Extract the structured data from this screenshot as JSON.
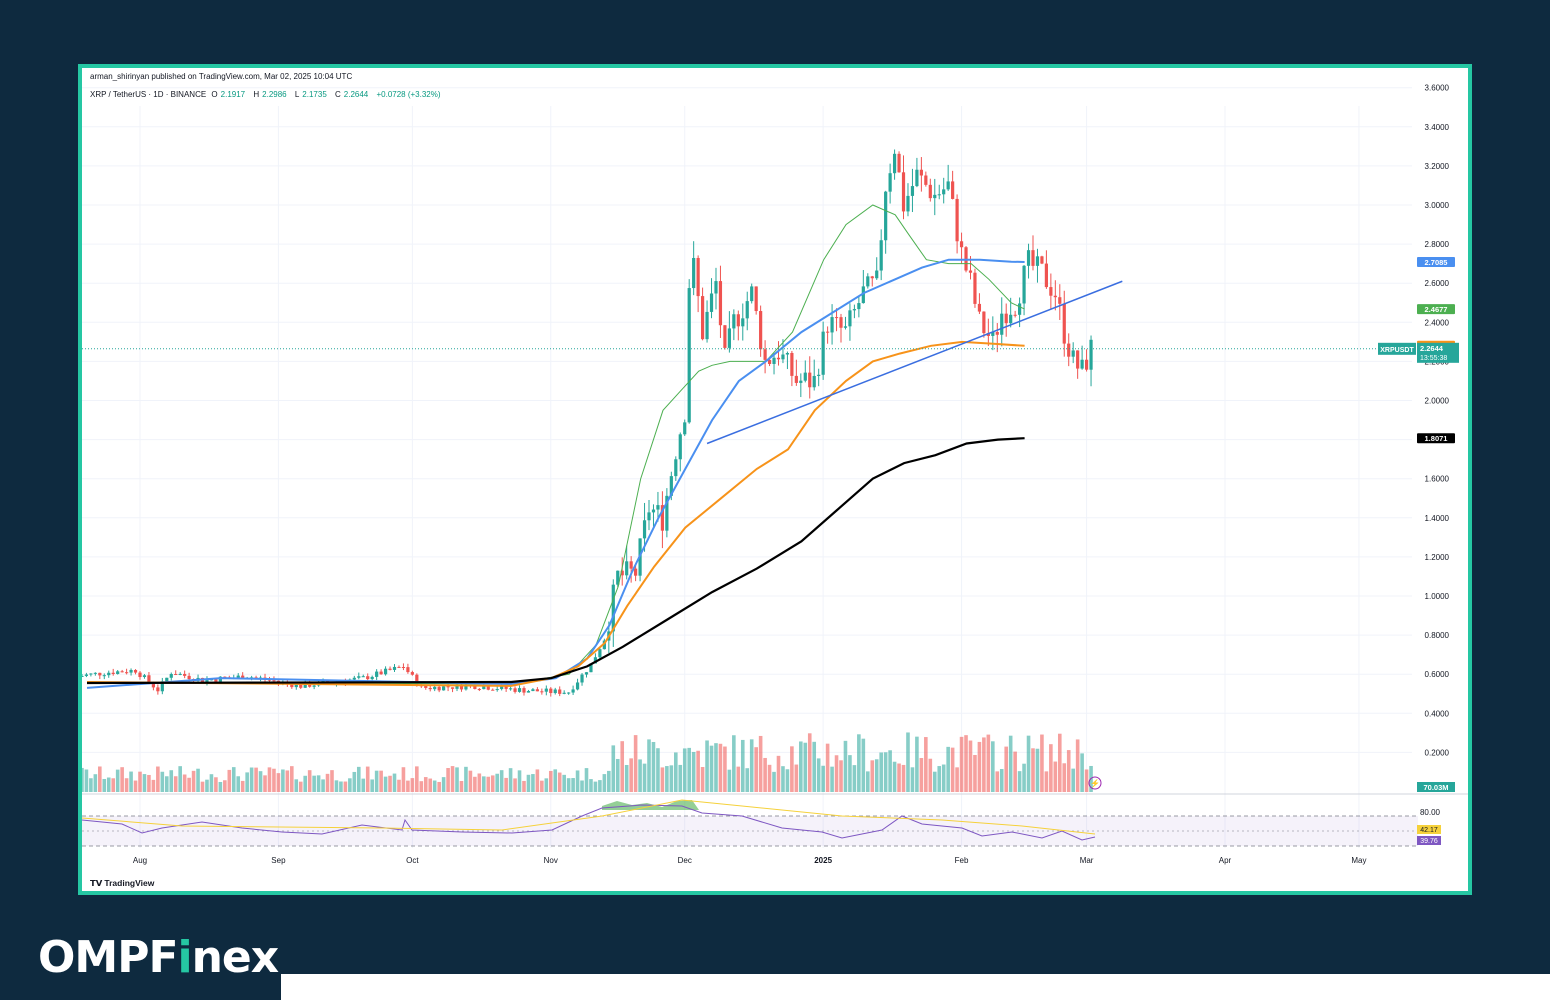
{
  "publisher": "arman_shirinyan published on TradingView.com, Mar 02, 2025 10:04 UTC",
  "symbol_line": "XRP / TetherUS · 1D · BINANCE",
  "ohlc": {
    "o_label": "O",
    "o": "2.1917",
    "h_label": "H",
    "h": "2.2986",
    "l_label": "L",
    "l": "2.1735",
    "c_label": "C",
    "c": "2.2644",
    "change": "+0.0728 (+3.32%)"
  },
  "footer_brand": "TradingView",
  "logo": {
    "pre": "OMPF",
    "i": "i",
    "post": "nex"
  },
  "colors": {
    "up": "#26a69a",
    "down": "#ef5350",
    "ma20": "#4caf50",
    "ma50": "#4a8ff0",
    "ma100": "#f7931a",
    "ma200": "#000000",
    "trend": "#3a6ee0",
    "accent": "#25c7a3",
    "bg": "#0e2a3f"
  },
  "chart_data": {
    "type": "candlestick",
    "title": "",
    "ylim": [
      0.15,
      3.7
    ],
    "price_ticks": [
      "3.6000",
      "3.4000",
      "3.2000",
      "3.0000",
      "2.8000",
      "2.6000",
      "2.4000",
      "2.2000",
      "2.0000",
      "1.8000",
      "1.6000",
      "1.4000",
      "1.2000",
      "1.0000",
      "0.8000",
      "0.6000",
      "0.4000",
      "0.2000"
    ],
    "x_labels": [
      {
        "label": "Aug",
        "date": "2024-08-01"
      },
      {
        "label": "Sep",
        "date": "2024-09-01"
      },
      {
        "label": "Oct",
        "date": "2024-10-01"
      },
      {
        "label": "Nov",
        "date": "2024-11-01"
      },
      {
        "label": "Dec",
        "date": "2024-12-01"
      },
      {
        "label": "2025",
        "date": "2025-01-01"
      },
      {
        "label": "Feb",
        "date": "2025-02-01"
      },
      {
        "label": "Mar",
        "date": "2025-03-01"
      },
      {
        "label": "Apr",
        "date": "2025-04-01"
      },
      {
        "label": "May",
        "date": "2025-05-01"
      }
    ],
    "close_path": [
      {
        "date": "2024-07-18",
        "close": 0.59
      },
      {
        "date": "2024-07-25",
        "close": 0.61
      },
      {
        "date": "2024-07-31",
        "close": 0.62
      },
      {
        "date": "2024-08-05",
        "close": 0.52
      },
      {
        "date": "2024-08-08",
        "close": 0.61
      },
      {
        "date": "2024-08-15",
        "close": 0.57
      },
      {
        "date": "2024-08-25",
        "close": 0.59
      },
      {
        "date": "2024-09-06",
        "close": 0.54
      },
      {
        "date": "2024-09-20",
        "close": 0.58
      },
      {
        "date": "2024-09-29",
        "close": 0.64
      },
      {
        "date": "2024-10-03",
        "close": 0.53
      },
      {
        "date": "2024-10-15",
        "close": 0.54
      },
      {
        "date": "2024-10-25",
        "close": 0.52
      },
      {
        "date": "2024-11-01",
        "close": 0.51
      },
      {
        "date": "2024-11-05",
        "close": 0.51
      },
      {
        "date": "2024-11-10",
        "close": 0.65
      },
      {
        "date": "2024-11-13",
        "close": 0.78
      },
      {
        "date": "2024-11-16",
        "close": 1.1
      },
      {
        "date": "2024-11-20",
        "close": 1.12
      },
      {
        "date": "2024-11-23",
        "close": 1.45
      },
      {
        "date": "2024-11-26",
        "close": 1.4
      },
      {
        "date": "2024-11-29",
        "close": 1.75
      },
      {
        "date": "2024-12-01",
        "close": 1.95
      },
      {
        "date": "2024-12-02",
        "close": 2.6
      },
      {
        "date": "2024-12-03",
        "close": 2.68
      },
      {
        "date": "2024-12-05",
        "close": 2.35
      },
      {
        "date": "2024-12-08",
        "close": 2.6
      },
      {
        "date": "2024-12-10",
        "close": 2.2
      },
      {
        "date": "2024-12-12",
        "close": 2.4
      },
      {
        "date": "2024-12-16",
        "close": 2.55
      },
      {
        "date": "2024-12-19",
        "close": 2.2
      },
      {
        "date": "2024-12-22",
        "close": 2.25
      },
      {
        "date": "2024-12-26",
        "close": 2.1
      },
      {
        "date": "2024-12-30",
        "close": 2.1
      },
      {
        "date": "2025-01-02",
        "close": 2.4
      },
      {
        "date": "2025-01-06",
        "close": 2.35
      },
      {
        "date": "2025-01-10",
        "close": 2.55
      },
      {
        "date": "2025-01-13",
        "close": 2.6
      },
      {
        "date": "2025-01-15",
        "close": 3.1
      },
      {
        "date": "2025-01-17",
        "close": 3.3
      },
      {
        "date": "2025-01-19",
        "close": 3.0
      },
      {
        "date": "2025-01-22",
        "close": 3.15
      },
      {
        "date": "2025-01-26",
        "close": 3.05
      },
      {
        "date": "2025-01-29",
        "close": 3.1
      },
      {
        "date": "2025-02-01",
        "close": 2.75
      },
      {
        "date": "2025-02-03",
        "close": 2.6
      },
      {
        "date": "2025-02-05",
        "close": 2.4
      },
      {
        "date": "2025-02-08",
        "close": 2.3
      },
      {
        "date": "2025-02-10",
        "close": 2.45
      },
      {
        "date": "2025-02-13",
        "close": 2.5
      },
      {
        "date": "2025-02-16",
        "close": 2.7
      },
      {
        "date": "2025-02-19",
        "close": 2.65
      },
      {
        "date": "2025-02-22",
        "close": 2.55
      },
      {
        "date": "2025-02-24",
        "close": 2.35
      },
      {
        "date": "2025-02-26",
        "close": 2.2
      },
      {
        "date": "2025-02-28",
        "close": 2.15
      },
      {
        "date": "2025-03-02",
        "close": 2.2644
      }
    ],
    "moving_averages": [
      {
        "color": "#4caf50",
        "last": 2.4677,
        "points": [
          [
            0,
            0.56
          ],
          [
            95,
            0.55
          ],
          [
            108,
            0.6
          ],
          [
            114,
            0.75
          ],
          [
            119,
            1.05
          ],
          [
            124,
            1.6
          ],
          [
            129,
            1.95
          ],
          [
            133,
            2.05
          ],
          [
            137,
            2.15
          ],
          [
            140,
            2.18
          ],
          [
            144,
            2.2
          ],
          [
            152,
            2.2
          ],
          [
            158,
            2.35
          ],
          [
            165,
            2.72
          ],
          [
            170,
            2.9
          ],
          [
            176,
            3.0
          ],
          [
            181,
            2.95
          ],
          [
            184,
            2.85
          ],
          [
            188,
            2.72
          ],
          [
            193,
            2.7
          ],
          [
            198,
            2.7
          ],
          [
            202,
            2.62
          ],
          [
            207,
            2.5
          ],
          [
            210,
            2.4677
          ]
        ]
      },
      {
        "color": "#4a8ff0",
        "last": 2.7085,
        "points": [
          [
            0,
            0.53
          ],
          [
            30,
            0.58
          ],
          [
            95,
            0.55
          ],
          [
            105,
            0.58
          ],
          [
            112,
            0.68
          ],
          [
            117,
            0.85
          ],
          [
            122,
            1.12
          ],
          [
            128,
            1.4
          ],
          [
            134,
            1.65
          ],
          [
            140,
            1.9
          ],
          [
            146,
            2.1
          ],
          [
            152,
            2.2
          ],
          [
            160,
            2.35
          ],
          [
            167,
            2.45
          ],
          [
            174,
            2.55
          ],
          [
            181,
            2.62
          ],
          [
            187,
            2.68
          ],
          [
            193,
            2.72
          ],
          [
            200,
            2.72
          ],
          [
            207,
            2.71
          ],
          [
            210,
            2.7085
          ]
        ]
      },
      {
        "color": "#f7931a",
        "last": 2.28,
        "points": [
          [
            0,
            0.56
          ],
          [
            95,
            0.54
          ],
          [
            104,
            0.58
          ],
          [
            110,
            0.64
          ],
          [
            116,
            0.76
          ],
          [
            121,
            0.95
          ],
          [
            127,
            1.15
          ],
          [
            134,
            1.35
          ],
          [
            142,
            1.5
          ],
          [
            150,
            1.65
          ],
          [
            157,
            1.75
          ],
          [
            163,
            1.95
          ],
          [
            170,
            2.1
          ],
          [
            176,
            2.2
          ],
          [
            182,
            2.24
          ],
          [
            189,
            2.28
          ],
          [
            196,
            2.3
          ],
          [
            203,
            2.29
          ],
          [
            210,
            2.28
          ]
        ]
      },
      {
        "color": "#000000",
        "last": 1.8071,
        "points": [
          [
            0,
            0.555
          ],
          [
            95,
            0.56
          ],
          [
            104,
            0.58
          ],
          [
            112,
            0.64
          ],
          [
            120,
            0.74
          ],
          [
            130,
            0.88
          ],
          [
            140,
            1.02
          ],
          [
            150,
            1.14
          ],
          [
            160,
            1.28
          ],
          [
            168,
            1.44
          ],
          [
            176,
            1.6
          ],
          [
            183,
            1.68
          ],
          [
            190,
            1.72
          ],
          [
            197,
            1.78
          ],
          [
            204,
            1.8
          ],
          [
            210,
            1.8071
          ]
        ]
      }
    ],
    "trendline": [
      {
        "date": "2024-12-06",
        "price": 1.78
      },
      {
        "date": "2025-03-09",
        "price": 2.61
      }
    ],
    "price_labels": [
      {
        "text": "2.7085",
        "color": "#4a8ff0"
      },
      {
        "text": "2.4677",
        "color": "#4caf50"
      },
      {
        "text": "2.2800",
        "color": "#f7931a"
      },
      {
        "text": "1.8071",
        "color": "#000000"
      }
    ],
    "current": {
      "symbol": "XRPUSDT",
      "price": "2.2644",
      "countdown": "13:55:38"
    },
    "volume_label": "70.03M",
    "rsi": {
      "ticks": [
        "80.00"
      ],
      "value_labels": [
        "42.17",
        "39.76"
      ]
    }
  }
}
